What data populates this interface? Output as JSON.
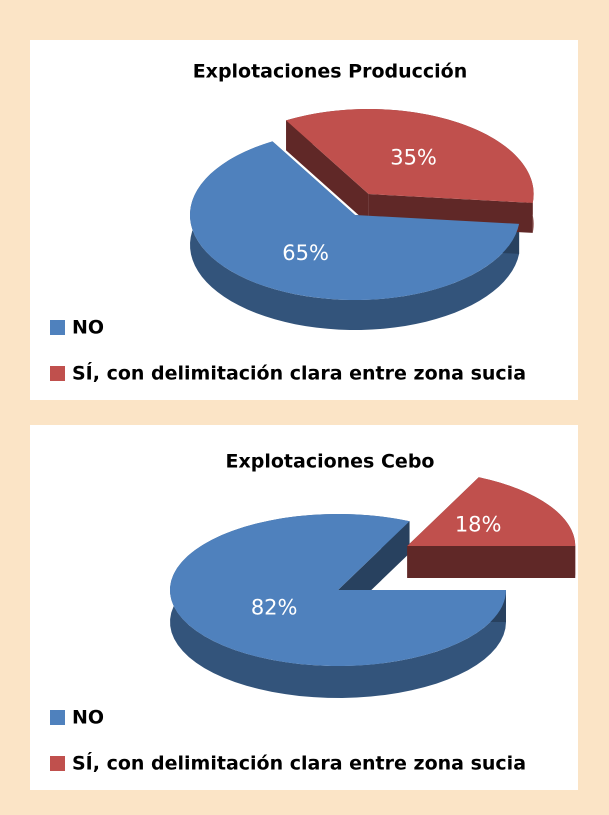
{
  "chart_data": [
    {
      "type": "pie",
      "title": "Explotaciones Producción",
      "categories": [
        "NO",
        "SÍ, con delimitación clara entre zona sucia"
      ],
      "values": [
        65,
        35
      ],
      "value_labels": [
        "65%",
        "35%"
      ],
      "colors": [
        "#4f81bd",
        "#c0504d"
      ],
      "legend": "bottom-left"
    },
    {
      "type": "pie",
      "title": "Explotaciones Cebo",
      "categories": [
        "NO",
        "SÍ, con delimitación clara entre zona sucia"
      ],
      "values": [
        82,
        18
      ],
      "value_labels": [
        "82%",
        "18%"
      ],
      "colors": [
        "#4f81bd",
        "#c0504d"
      ],
      "legend": "bottom-left"
    }
  ]
}
